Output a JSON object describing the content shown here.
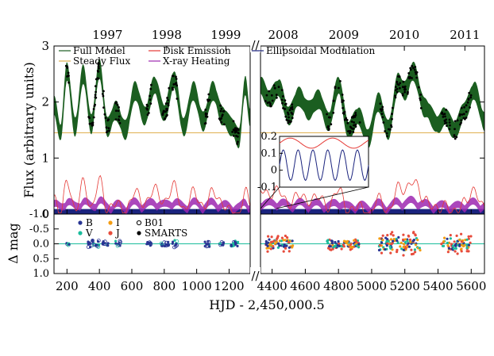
{
  "chart_data": [
    {
      "type": "line",
      "xlabel": "HJD - 2,450,000.5",
      "ylabel": "Flux (arbitrary units)",
      "ylim": [
        0,
        3
      ],
      "y_ticks": [
        "0",
        "1",
        "2",
        "3"
      ],
      "x_segments": [
        {
          "xlim": [
            120,
            1330
          ],
          "ticks": [
            200,
            400,
            600,
            800,
            1000,
            1200
          ]
        },
        {
          "xlim": [
            4330,
            5680
          ],
          "ticks": [
            4400,
            4600,
            4800,
            5000,
            5200,
            5400,
            5600
          ]
        }
      ],
      "axis_break": "//",
      "years": [
        {
          "label": "1997",
          "hjd": 450
        },
        {
          "label": "1998",
          "hjd": 815
        },
        {
          "label": "1999",
          "hjd": 1180
        },
        {
          "label": "2008",
          "hjd": 4467
        },
        {
          "label": "2009",
          "hjd": 4832
        },
        {
          "label": "2010",
          "hjd": 5197
        },
        {
          "label": "2011",
          "hjd": 5562
        }
      ],
      "legend": [
        {
          "label": "Full Model",
          "color": "#1b5e20"
        },
        {
          "label": "Disk Emission",
          "color": "#e53935"
        },
        {
          "label": "Ellipsoidal Modulation",
          "color": "#1a237e"
        },
        {
          "label": "Steady Flux",
          "color": "#e0b050"
        },
        {
          "label": "X-ray Heating",
          "color": "#9c27b0"
        }
      ],
      "steady_flux": 1.45,
      "full_model_nodes": {
        "seg1": [
          [
            120,
            1.95
          ],
          [
            160,
            1.45
          ],
          [
            200,
            2.55
          ],
          [
            250,
            1.55
          ],
          [
            300,
            2.5
          ],
          [
            350,
            1.6
          ],
          [
            400,
            2.6
          ],
          [
            450,
            1.55
          ],
          [
            500,
            1.85
          ],
          [
            560,
            1.5
          ],
          [
            620,
            2.2
          ],
          [
            680,
            1.75
          ],
          [
            740,
            2.3
          ],
          [
            800,
            1.8
          ],
          [
            860,
            2.4
          ],
          [
            920,
            1.55
          ],
          [
            980,
            2.2
          ],
          [
            1040,
            1.65
          ],
          [
            1100,
            2.2
          ],
          [
            1160,
            1.75
          ],
          [
            1220,
            1.55
          ],
          [
            1260,
            1.35
          ],
          [
            1300,
            2.3
          ],
          [
            1330,
            1.7
          ]
        ],
        "seg2": [
          [
            4330,
            2.3
          ],
          [
            4380,
            2.05
          ],
          [
            4440,
            2.25
          ],
          [
            4500,
            1.75
          ],
          [
            4560,
            2.1
          ],
          [
            4620,
            1.85
          ],
          [
            4680,
            2.05
          ],
          [
            4740,
            1.65
          ],
          [
            4800,
            2.3
          ],
          [
            4860,
            1.5
          ],
          [
            4920,
            1.75
          ],
          [
            4980,
            1.35
          ],
          [
            5040,
            2.0
          ],
          [
            5100,
            1.5
          ],
          [
            5160,
            2.35
          ],
          [
            5200,
            2.2
          ],
          [
            5250,
            2.55
          ],
          [
            5320,
            1.9
          ],
          [
            5400,
            1.6
          ],
          [
            5440,
            1.75
          ],
          [
            5500,
            1.5
          ],
          [
            5560,
            1.85
          ],
          [
            5620,
            2.2
          ],
          [
            5680,
            1.65
          ]
        ]
      },
      "inset": {
        "ylim": [
          -0.1,
          0.2
        ],
        "y_ticks": [
          "0.2",
          "0.1",
          "0",
          "-0.1"
        ],
        "series": [
          "Disk Emission",
          "Ellipsoidal Modulation"
        ]
      }
    },
    {
      "type": "scatter",
      "ylabel": "Δ mag",
      "ylim": [
        1.0,
        -1.0
      ],
      "y_ticks": [
        "-1.0",
        "-0.5",
        "0.0",
        "0.5",
        "1.0"
      ],
      "legend": [
        {
          "label": "B",
          "color": "#283593",
          "marker": "filled"
        },
        {
          "label": "I",
          "color": "#f39c12",
          "marker": "filled"
        },
        {
          "label": "B01",
          "color": "#000000",
          "marker": "open"
        },
        {
          "label": "V",
          "color": "#1abc9c",
          "marker": "filled"
        },
        {
          "label": "J",
          "color": "#e74c3c",
          "marker": "filled"
        },
        {
          "label": "SMARTS",
          "color": "#000000",
          "marker": "filled"
        }
      ],
      "residual_groups": [
        {
          "x": [
            195,
            215
          ],
          "spread": 0.05
        },
        {
          "x": [
            330,
            400
          ],
          "spread": 0.12
        },
        {
          "x": [
            420,
            460
          ],
          "spread": 0.08
        },
        {
          "x": [
            500,
            530
          ],
          "spread": 0.1
        },
        {
          "x": [
            690,
            720
          ],
          "spread": 0.06
        },
        {
          "x": [
            780,
            830
          ],
          "spread": 0.08
        },
        {
          "x": [
            850,
            880
          ],
          "spread": 0.12
        },
        {
          "x": [
            1050,
            1080
          ],
          "spread": 0.1
        },
        {
          "x": [
            1140,
            1170
          ],
          "spread": 0.06
        },
        {
          "x": [
            1210,
            1260
          ],
          "spread": 0.1
        },
        {
          "x": [
            4360,
            4530
          ],
          "spread": 0.15
        },
        {
          "x": [
            4730,
            4930
          ],
          "spread": 0.12
        },
        {
          "x": [
            5040,
            5300
          ],
          "spread": 0.22
        },
        {
          "x": [
            5420,
            5600
          ],
          "spread": 0.2
        }
      ]
    }
  ]
}
